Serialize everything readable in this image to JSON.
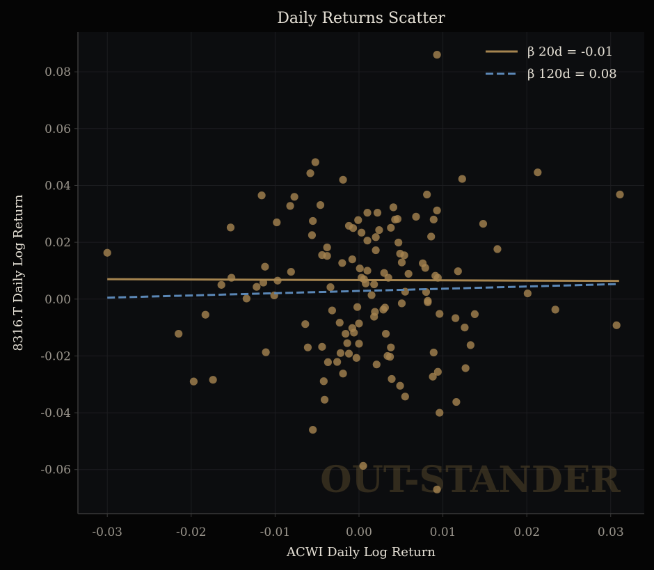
{
  "chart_data": {
    "type": "scatter",
    "title": "Daily Returns Scatter",
    "xlabel": "ACWI Daily Log Return",
    "ylabel": "8316.T Daily Log Return",
    "xlim": [
      -0.0335,
      0.034
    ],
    "ylim": [
      -0.0755,
      0.094
    ],
    "xticks": [
      -0.03,
      -0.02,
      -0.01,
      0.0,
      0.01,
      0.02,
      0.03
    ],
    "xtick_labels": [
      "-0.03",
      "-0.02",
      "-0.01",
      "0.00",
      "0.01",
      "0.02",
      "0.03"
    ],
    "yticks": [
      -0.06,
      -0.04,
      -0.02,
      0.0,
      0.02,
      0.04,
      0.06,
      0.08
    ],
    "ytick_labels": [
      "-0.06",
      "-0.04",
      "-0.02",
      "0.00",
      "0.02",
      "0.04",
      "0.06",
      "0.08"
    ],
    "grid": true,
    "legend_position": "top-right",
    "watermark": "OUT-STANDER",
    "colors": {
      "background": "#050505",
      "plot_background": "#0c0d0f",
      "points": "#a68550",
      "line_20d": "#a68550",
      "line_120d": "#5b87b6",
      "grid": "#1c1d20",
      "axis": "#3a3a3a"
    },
    "points": [
      [
        -0.03,
        0.0163
      ],
      [
        -0.0215,
        -0.0122
      ],
      [
        -0.0197,
        -0.029
      ],
      [
        -0.0183,
        -0.0055
      ],
      [
        -0.0174,
        -0.0284
      ],
      [
        -0.0164,
        0.005
      ],
      [
        -0.0153,
        0.0252
      ],
      [
        -0.0152,
        0.0075
      ],
      [
        -0.0134,
        0.0002
      ],
      [
        -0.0122,
        0.0043
      ],
      [
        -0.0116,
        0.0365
      ],
      [
        -0.0114,
        0.0058
      ],
      [
        -0.0112,
        0.0114
      ],
      [
        -0.0111,
        -0.0187
      ],
      [
        -0.0101,
        0.0013
      ],
      [
        -0.0098,
        0.027
      ],
      [
        -0.0097,
        0.0065
      ],
      [
        -0.0082,
        0.0328
      ],
      [
        -0.0081,
        0.0096
      ],
      [
        -0.0077,
        0.036
      ],
      [
        -0.0064,
        -0.0088
      ],
      [
        -0.0061,
        -0.017
      ],
      [
        -0.0058,
        0.0443
      ],
      [
        -0.0056,
        0.0225
      ],
      [
        -0.0055,
        0.0275
      ],
      [
        -0.0055,
        -0.046
      ],
      [
        -0.0052,
        0.0482
      ],
      [
        -0.0046,
        0.0331
      ],
      [
        -0.0044,
        0.0155
      ],
      [
        -0.0044,
        -0.0168
      ],
      [
        -0.0042,
        -0.0289
      ],
      [
        -0.0041,
        -0.0354
      ],
      [
        -0.0038,
        0.0182
      ],
      [
        -0.0038,
        0.0152
      ],
      [
        -0.0037,
        -0.0222
      ],
      [
        -0.0034,
        0.0042
      ],
      [
        -0.0032,
        -0.004
      ],
      [
        -0.0026,
        -0.0221
      ],
      [
        -0.0023,
        -0.0083
      ],
      [
        -0.0022,
        -0.019
      ],
      [
        -0.002,
        0.0127
      ],
      [
        -0.0019,
        0.042
      ],
      [
        -0.0019,
        -0.0262
      ],
      [
        -0.0016,
        -0.0122
      ],
      [
        -0.0014,
        -0.0155
      ],
      [
        -0.0012,
        0.0258
      ],
      [
        -0.0012,
        -0.0192
      ],
      [
        -0.0008,
        0.014
      ],
      [
        -0.0008,
        -0.0102
      ],
      [
        -0.0007,
        0.025
      ],
      [
        -0.0006,
        -0.0118
      ],
      [
        -0.0003,
        -0.0207
      ],
      [
        -0.0002,
        -0.0028
      ],
      [
        -0.0001,
        0.0278
      ],
      [
        0.0,
        -0.0157
      ],
      [
        0.0,
        -0.0086
      ],
      [
        0.0001,
        0.0108
      ],
      [
        0.0003,
        0.0234
      ],
      [
        0.0003,
        0.0075
      ],
      [
        0.0005,
        -0.0587
      ],
      [
        0.0006,
        0.007
      ],
      [
        0.0008,
        0.0055
      ],
      [
        0.001,
        0.0304
      ],
      [
        0.001,
        0.01
      ],
      [
        0.001,
        0.0206
      ],
      [
        0.0015,
        0.0014
      ],
      [
        0.0018,
        0.0052
      ],
      [
        0.0018,
        -0.0062
      ],
      [
        0.0019,
        -0.0045
      ],
      [
        0.002,
        0.0218
      ],
      [
        0.002,
        0.0172
      ],
      [
        0.0021,
        -0.023
      ],
      [
        0.0022,
        0.0304
      ],
      [
        0.0024,
        0.0243
      ],
      [
        0.0029,
        -0.0037
      ],
      [
        0.003,
        0.0092
      ],
      [
        0.0031,
        -0.003
      ],
      [
        0.0032,
        -0.0122
      ],
      [
        0.0034,
        -0.02
      ],
      [
        0.0035,
        0.0075
      ],
      [
        0.0037,
        -0.0203
      ],
      [
        0.0038,
        0.0251
      ],
      [
        0.0038,
        -0.017
      ],
      [
        0.0039,
        -0.0281
      ],
      [
        0.0041,
        0.0323
      ],
      [
        0.0043,
        0.028
      ],
      [
        0.0046,
        0.0282
      ],
      [
        0.0047,
        0.0199
      ],
      [
        0.0049,
        -0.0305
      ],
      [
        0.0049,
        0.016
      ],
      [
        0.0051,
        0.0129
      ],
      [
        0.0051,
        -0.0015
      ],
      [
        0.0054,
        0.0154
      ],
      [
        0.0055,
        0.0026
      ],
      [
        0.0055,
        -0.0343
      ],
      [
        0.0059,
        0.0089
      ],
      [
        0.0068,
        0.029
      ],
      [
        0.0076,
        0.0126
      ],
      [
        0.0079,
        0.011
      ],
      [
        0.008,
        0.0025
      ],
      [
        0.0081,
        0.0368
      ],
      [
        0.0082,
        -0.0006
      ],
      [
        0.0082,
        -0.0011
      ],
      [
        0.0086,
        0.022
      ],
      [
        0.0088,
        -0.0273
      ],
      [
        0.0089,
        -0.0188
      ],
      [
        0.0089,
        0.028
      ],
      [
        0.0091,
        0.0082
      ],
      [
        0.0093,
        0.086
      ],
      [
        0.0093,
        -0.067
      ],
      [
        0.0093,
        0.0312
      ],
      [
        0.0094,
        0.0075
      ],
      [
        0.0094,
        -0.0256
      ],
      [
        0.0096,
        -0.0052
      ],
      [
        0.0096,
        -0.04
      ],
      [
        0.0115,
        -0.0067
      ],
      [
        0.0116,
        -0.0362
      ],
      [
        0.0118,
        0.0098
      ],
      [
        0.0123,
        0.0423
      ],
      [
        0.0126,
        -0.01
      ],
      [
        0.0127,
        -0.0243
      ],
      [
        0.0133,
        -0.0162
      ],
      [
        0.0138,
        -0.0053
      ],
      [
        0.0148,
        0.0265
      ],
      [
        0.0165,
        0.0176
      ],
      [
        0.0201,
        0.002
      ],
      [
        0.0213,
        0.0446
      ],
      [
        0.0234,
        -0.0037
      ],
      [
        0.0307,
        -0.0092
      ],
      [
        0.0311,
        0.0368
      ]
    ],
    "series": [
      {
        "name": "β 20d = -0.01",
        "x": [
          -0.03,
          0.031
        ],
        "y": [
          0.007,
          0.0064
        ],
        "style": "solid"
      },
      {
        "name": "β 120d = 0.08",
        "x": [
          -0.03,
          0.031
        ],
        "y": [
          0.0005,
          0.0053
        ],
        "style": "dashed"
      }
    ]
  }
}
